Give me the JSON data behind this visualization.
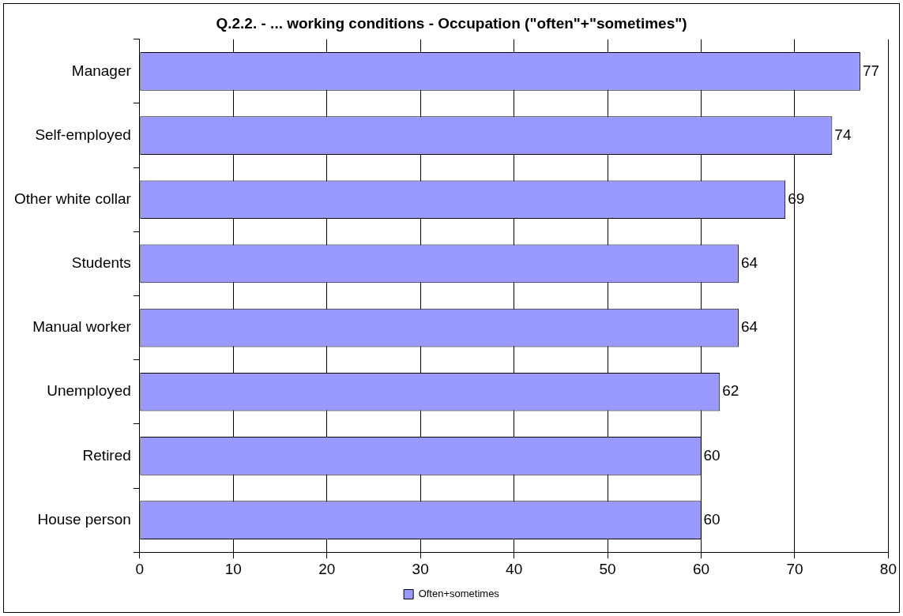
{
  "chart_data": {
    "type": "bar",
    "orientation": "horizontal",
    "title": "Q.2.2. - ... working conditions - Occupation (\"often\"+\"sometimes\")",
    "categories": [
      "Manager",
      "Self-employed",
      "Other white collar",
      "Students",
      "Manual worker",
      "Unemployed",
      "Retired",
      "House person"
    ],
    "series": [
      {
        "name": "Often+sometimes",
        "color": "#9999ff",
        "values": [
          77,
          74,
          69,
          64,
          64,
          62,
          60,
          60
        ]
      }
    ],
    "xlim": [
      0,
      80
    ],
    "xticks": [
      0,
      10,
      20,
      30,
      40,
      50,
      60,
      70,
      80
    ],
    "grid": "x",
    "legend": "bottom",
    "data_labels": true
  }
}
